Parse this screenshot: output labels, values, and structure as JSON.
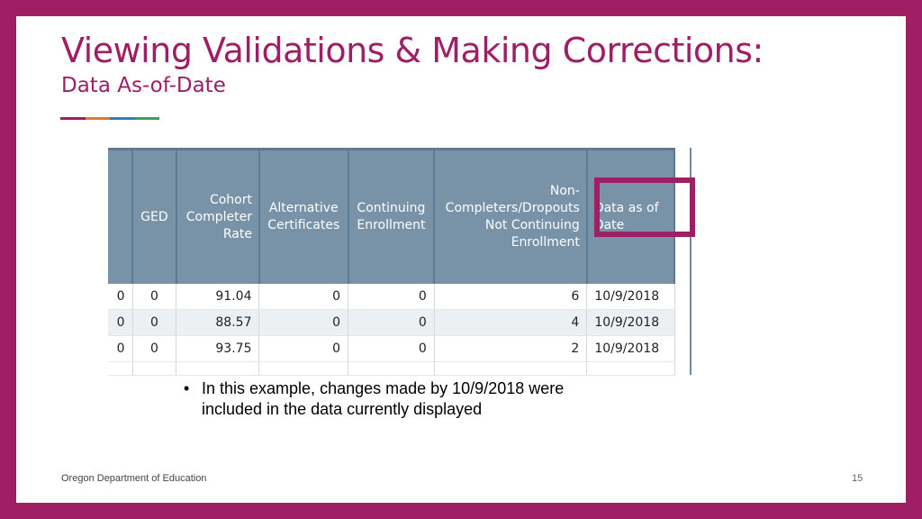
{
  "slide": {
    "title": "Viewing Validations & Making Corrections:",
    "subtitle": "Data As-of-Date",
    "accent_colors": [
      "#9e1f63",
      "#e07b2e",
      "#2e7fbf",
      "#3aa35b"
    ],
    "bullet": "In this example, changes made by 10/9/2018 were included in the data currently displayed",
    "footer": "Oregon Department of Education",
    "page_number": "15"
  },
  "table": {
    "headers": [
      "",
      "GED",
      "Cohort Completer Rate",
      "Alternative Certificates",
      "Continuing Enrollment",
      "Non-Completers/Dropouts Not Continuing Enrollment",
      "Data as of Date"
    ],
    "rows": [
      [
        "0",
        "0",
        "91.04",
        "0",
        "0",
        "6",
        "10/9/2018"
      ],
      [
        "0",
        "0",
        "88.57",
        "0",
        "0",
        "4",
        "10/9/2018"
      ],
      [
        "0",
        "0",
        "93.75",
        "0",
        "0",
        "2",
        "10/9/2018"
      ]
    ],
    "highlighted_column": "Data as of Date",
    "highlight_color": "#9e1f63"
  }
}
